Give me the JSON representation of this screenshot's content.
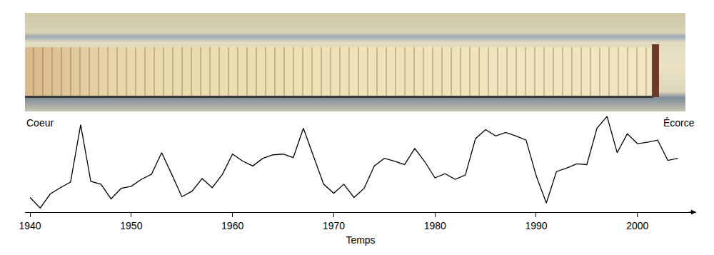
{
  "chart_data": {
    "type": "line",
    "x_label": "Temps",
    "annotations": [
      "Coeur",
      "Écorce"
    ],
    "x": [
      1940,
      1941,
      1942,
      1943,
      1944,
      1945,
      1946,
      1947,
      1948,
      1949,
      1950,
      1951,
      1952,
      1953,
      1954,
      1955,
      1956,
      1957,
      1958,
      1959,
      1960,
      1961,
      1962,
      1963,
      1964,
      1965,
      1966,
      1967,
      1968,
      1969,
      1970,
      1971,
      1972,
      1973,
      1974,
      1975,
      1976,
      1977,
      1978,
      1979,
      1980,
      1981,
      1982,
      1983,
      1984,
      1985,
      1986,
      1987,
      1988,
      1989,
      1990,
      1991,
      1992,
      1993,
      1994,
      1995,
      1996,
      1997,
      1998,
      1999,
      2000,
      2001,
      2002,
      2003,
      2004
    ],
    "values": [
      21,
      6,
      26,
      35,
      43,
      125,
      44,
      40,
      19,
      34,
      37,
      47,
      54,
      85,
      54,
      22,
      30,
      48,
      35,
      54,
      83,
      73,
      66,
      77,
      82,
      83,
      78,
      120,
      80,
      40,
      27,
      40,
      21,
      34,
      66,
      77,
      73,
      68,
      91,
      72,
      49,
      55,
      47,
      53,
      105,
      118,
      109,
      114,
      109,
      103,
      52,
      13,
      58,
      63,
      69,
      68,
      120,
      137,
      85,
      112,
      98,
      100,
      103,
      74,
      77
    ],
    "color": "#000000",
    "xlim": [
      1939.5,
      2005.8
    ],
    "xticks": [
      1940,
      1950,
      1960,
      1970,
      1980,
      1990,
      2000
    ],
    "ylim": [
      0,
      142
    ],
    "grid": false,
    "tick_labels": "x"
  }
}
